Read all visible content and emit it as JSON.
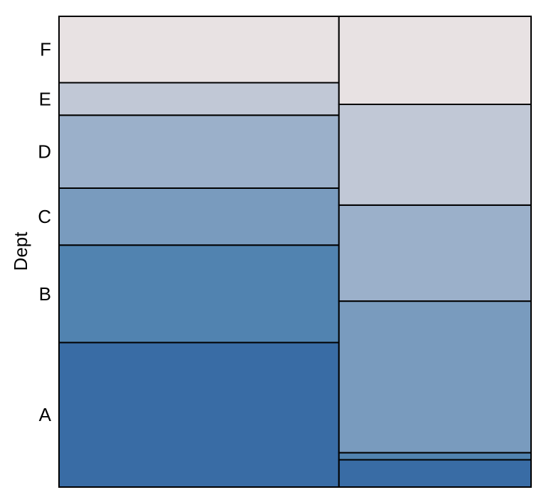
{
  "chart_data": {
    "type": "mosaic",
    "title": "",
    "xlabel": "",
    "ylabel": "Dept",
    "y_categories": [
      "A",
      "B",
      "C",
      "D",
      "E",
      "F"
    ],
    "columns": [
      {
        "width_share": 0.593,
        "cells": [
          {
            "dept": "A",
            "share": 0.307
          },
          {
            "dept": "B",
            "share": 0.207
          },
          {
            "dept": "C",
            "share": 0.121
          },
          {
            "dept": "D",
            "share": 0.155
          },
          {
            "dept": "E",
            "share": 0.069
          },
          {
            "dept": "F",
            "share": 0.141
          }
        ]
      },
      {
        "width_share": 0.407,
        "cells": [
          {
            "dept": "A",
            "share": 0.058
          },
          {
            "dept": "B",
            "share": 0.015
          },
          {
            "dept": "C",
            "share": 0.322
          },
          {
            "dept": "D",
            "share": 0.204
          },
          {
            "dept": "E",
            "share": 0.214
          },
          {
            "dept": "F",
            "share": 0.187
          }
        ]
      }
    ],
    "dept_colors": {
      "A": "#396ca5",
      "B": "#5183b0",
      "C": "#799bbe",
      "D": "#9bb0ca",
      "E": "#c1c8d6",
      "F": "#e8e2e3"
    },
    "grid": false,
    "legend": "none"
  }
}
